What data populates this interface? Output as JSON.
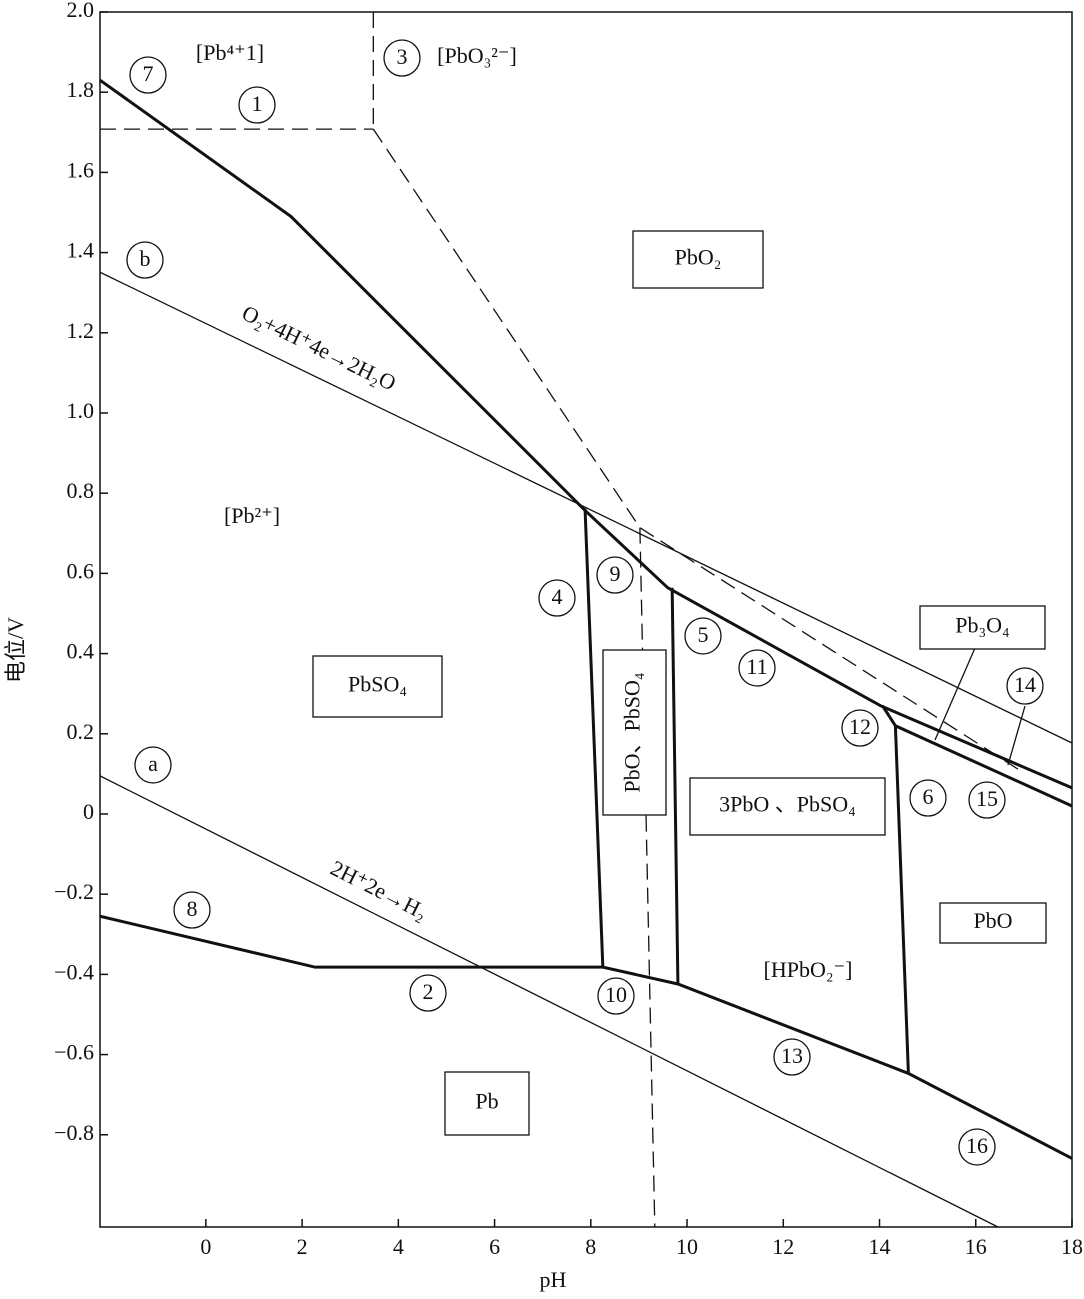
{
  "chart_data": {
    "type": "line",
    "x_label": "pH",
    "y_label": "电位/V",
    "xlim": [
      -2.2,
      18
    ],
    "ylim": [
      -1.03,
      2.0
    ],
    "xticks": [
      0,
      2,
      4,
      6,
      8,
      10,
      12,
      14,
      16,
      18
    ],
    "yticks": [
      {
        "value": 2,
        "label": "2.0"
      },
      1.8,
      1.6,
      1.4,
      1.2,
      {
        "value": 1,
        "label": "1.0"
      },
      0.8,
      0.6,
      0.4,
      0.2,
      0,
      {
        "value": -0.2,
        "label": "−0.2"
      },
      {
        "value": -0.4,
        "label": "−0.4"
      },
      {
        "value": -0.6,
        "label": "−0.6"
      },
      {
        "value": -0.8,
        "label": "−0.8"
      }
    ],
    "lines": [
      {
        "style": "thick",
        "x": [
          -2.2,
          1.77,
          7.88,
          9.6,
          14.02,
          18
        ],
        "y": [
          1.83,
          1.49,
          0.757,
          0.564,
          0.27,
          0.065
        ]
      },
      {
        "style": "thick",
        "x": [
          14.06,
          14.33,
          18
        ],
        "y": [
          0.27,
          0.22,
          0.02
        ]
      },
      {
        "style": "thick",
        "x": [
          -2.2,
          2.27,
          8.25,
          9.81,
          14.6,
          18
        ],
        "y": [
          -0.255,
          -0.382,
          -0.382,
          -0.424,
          -0.647,
          -0.859
        ]
      },
      {
        "style": "thick",
        "x": [
          7.88,
          8.25
        ],
        "y": [
          0.762,
          -0.382
        ]
      },
      {
        "style": "thick",
        "x": [
          9.69,
          9.81
        ],
        "y": [
          0.564,
          -0.424
        ]
      },
      {
        "style": "thick",
        "x": [
          14.33,
          14.6
        ],
        "y": [
          0.22,
          -0.647
        ]
      },
      {
        "style": "thin",
        "x": [
          -2.2,
          18
        ],
        "y": [
          1.351,
          0.177
        ]
      },
      {
        "style": "thin",
        "x": [
          -2.2,
          16.46
        ],
        "y": [
          0.095,
          -1.03
        ]
      },
      {
        "style": "dashed",
        "x": [
          -2.2,
          3.48
        ],
        "y": [
          1.708,
          1.708
        ]
      },
      {
        "style": "dashed",
        "x": [
          3.48,
          3.48
        ],
        "y": [
          2.0,
          1.708
        ]
      },
      {
        "style": "dashed",
        "x": [
          3.48,
          9.02,
          16.94
        ],
        "y": [
          1.708,
          0.714,
          0.107
        ]
      },
      {
        "style": "dashed",
        "x": [
          9.02,
          9.33
        ],
        "y": [
          0.714,
          -1.03
        ]
      }
    ],
    "circled_labels": [
      "7",
      "1",
      "3",
      "b",
      "a",
      "8",
      "2",
      "10",
      "4",
      "9",
      "5",
      "11",
      "12",
      "6",
      "15",
      "14",
      "13",
      "16"
    ],
    "labels": [
      "[Pb⁴⁺1]",
      "[PbO₃²⁻]",
      "[Pb²⁺]",
      "[HPbO₂⁻]"
    ],
    "boxed_labels": [
      "PbO₂",
      "PbSO₄",
      "PbO、PbSO₄",
      "3PbO 、PbSO₄",
      "Pb₃O₄",
      "PbO",
      "Pb"
    ],
    "line_labels": [
      "O₂+4H⁺4e→2H₂O",
      "2H⁺2e→H₂"
    ]
  }
}
